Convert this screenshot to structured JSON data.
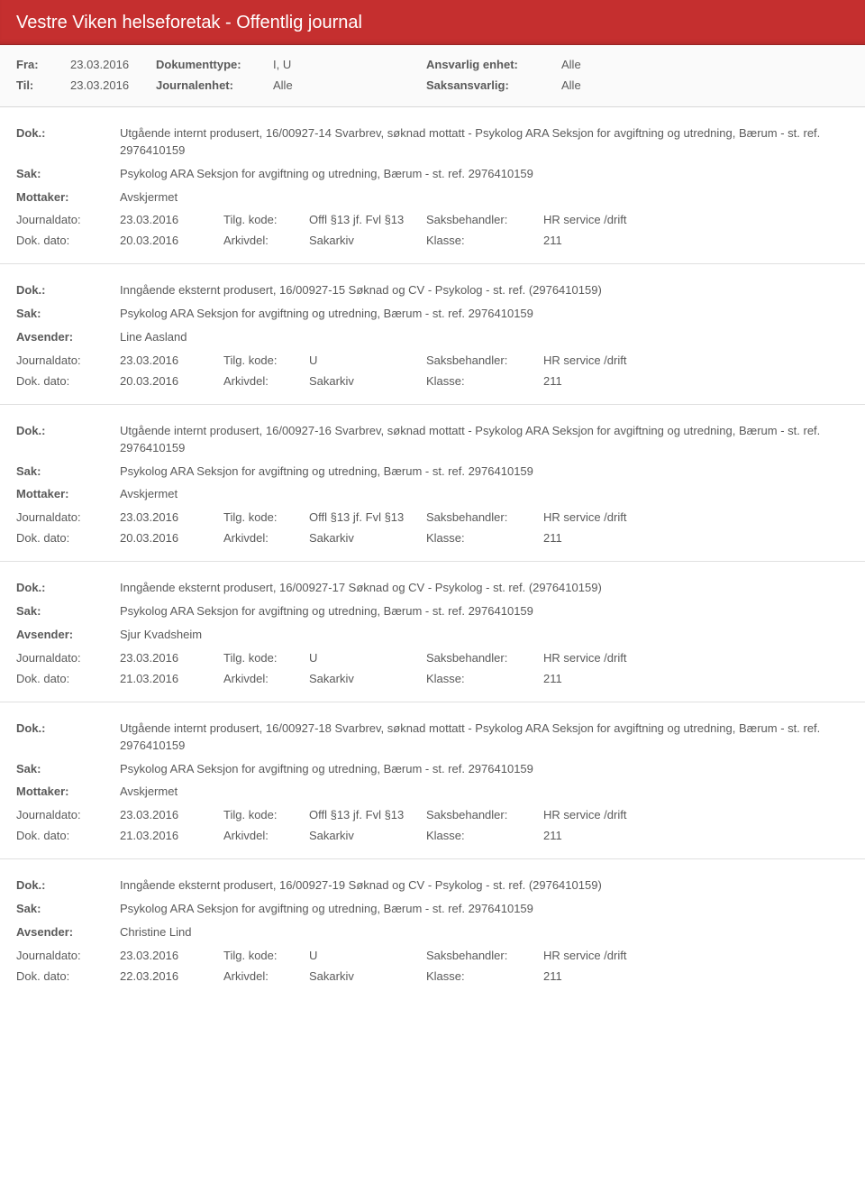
{
  "banner": {
    "title": "Vestre Viken helseforetak - Offentlig journal"
  },
  "filters": {
    "row1": {
      "l1": "Fra:",
      "v1": "23.03.2016",
      "l2": "Dokumenttype:",
      "v2": "I, U",
      "l3": "Ansvarlig enhet:",
      "v3": "Alle"
    },
    "row2": {
      "l1": "Til:",
      "v1": "23.03.2016",
      "l2": "Journalenhet:",
      "v2": "Alle",
      "l3": "Saksansvarlig:",
      "v3": "Alle"
    }
  },
  "labels": {
    "dok": "Dok.:",
    "sak": "Sak:",
    "mottaker": "Mottaker:",
    "avsender": "Avsender:",
    "journaldato": "Journaldato:",
    "dokdato": "Dok. dato:",
    "tilgkode": "Tilg. kode:",
    "arkivdel": "Arkivdel:",
    "saksbehandler": "Saksbehandler:",
    "klasse": "Klasse:"
  },
  "entries": [
    {
      "dok": "Utgående internt produsert, 16/00927-14 Svarbrev, søknad mottatt - Psykolog ARA Seksjon for avgiftning og utredning, Bærum - st. ref. 2976410159",
      "sak": "Psykolog ARA Seksjon for avgiftning og utredning, Bærum - st. ref. 2976410159",
      "partyLabel": "Mottaker:",
      "party": "Avskjermet",
      "journaldato": "23.03.2016",
      "tilgkode": "Offl §13 jf. Fvl §13",
      "saksbehandler": "HR service /drift",
      "dokdato": "20.03.2016",
      "arkivdel": "Sakarkiv",
      "klasse": "211"
    },
    {
      "dok": "Inngående eksternt produsert, 16/00927-15 Søknad og CV - Psykolog - st. ref. (2976410159)",
      "sak": "Psykolog ARA Seksjon for avgiftning og utredning, Bærum - st. ref. 2976410159",
      "partyLabel": "Avsender:",
      "party": "Line Aasland",
      "journaldato": "23.03.2016",
      "tilgkode": "U",
      "saksbehandler": "HR service /drift",
      "dokdato": "20.03.2016",
      "arkivdel": "Sakarkiv",
      "klasse": "211"
    },
    {
      "dok": "Utgående internt produsert, 16/00927-16 Svarbrev, søknad mottatt - Psykolog ARA Seksjon for avgiftning og utredning, Bærum - st. ref. 2976410159",
      "sak": "Psykolog ARA Seksjon for avgiftning og utredning, Bærum - st. ref. 2976410159",
      "partyLabel": "Mottaker:",
      "party": "Avskjermet",
      "journaldato": "23.03.2016",
      "tilgkode": "Offl §13 jf. Fvl §13",
      "saksbehandler": "HR service /drift",
      "dokdato": "20.03.2016",
      "arkivdel": "Sakarkiv",
      "klasse": "211"
    },
    {
      "dok": "Inngående eksternt produsert, 16/00927-17 Søknad og CV - Psykolog - st. ref. (2976410159)",
      "sak": "Psykolog ARA Seksjon for avgiftning og utredning, Bærum - st. ref. 2976410159",
      "partyLabel": "Avsender:",
      "party": "Sjur Kvadsheim",
      "journaldato": "23.03.2016",
      "tilgkode": "U",
      "saksbehandler": "HR service /drift",
      "dokdato": "21.03.2016",
      "arkivdel": "Sakarkiv",
      "klasse": "211"
    },
    {
      "dok": "Utgående internt produsert, 16/00927-18 Svarbrev, søknad mottatt - Psykolog ARA Seksjon for avgiftning og utredning, Bærum - st. ref. 2976410159",
      "sak": "Psykolog ARA Seksjon for avgiftning og utredning, Bærum - st. ref. 2976410159",
      "partyLabel": "Mottaker:",
      "party": "Avskjermet",
      "journaldato": "23.03.2016",
      "tilgkode": "Offl §13 jf. Fvl §13",
      "saksbehandler": "HR service /drift",
      "dokdato": "21.03.2016",
      "arkivdel": "Sakarkiv",
      "klasse": "211"
    },
    {
      "dok": "Inngående eksternt produsert, 16/00927-19 Søknad og CV - Psykolog - st. ref. (2976410159)",
      "sak": "Psykolog ARA Seksjon for avgiftning og utredning, Bærum - st. ref. 2976410159",
      "partyLabel": "Avsender:",
      "party": "Christine Lind",
      "journaldato": "23.03.2016",
      "tilgkode": "U",
      "saksbehandler": "HR service /drift",
      "dokdato": "22.03.2016",
      "arkivdel": "Sakarkiv",
      "klasse": "211"
    }
  ]
}
